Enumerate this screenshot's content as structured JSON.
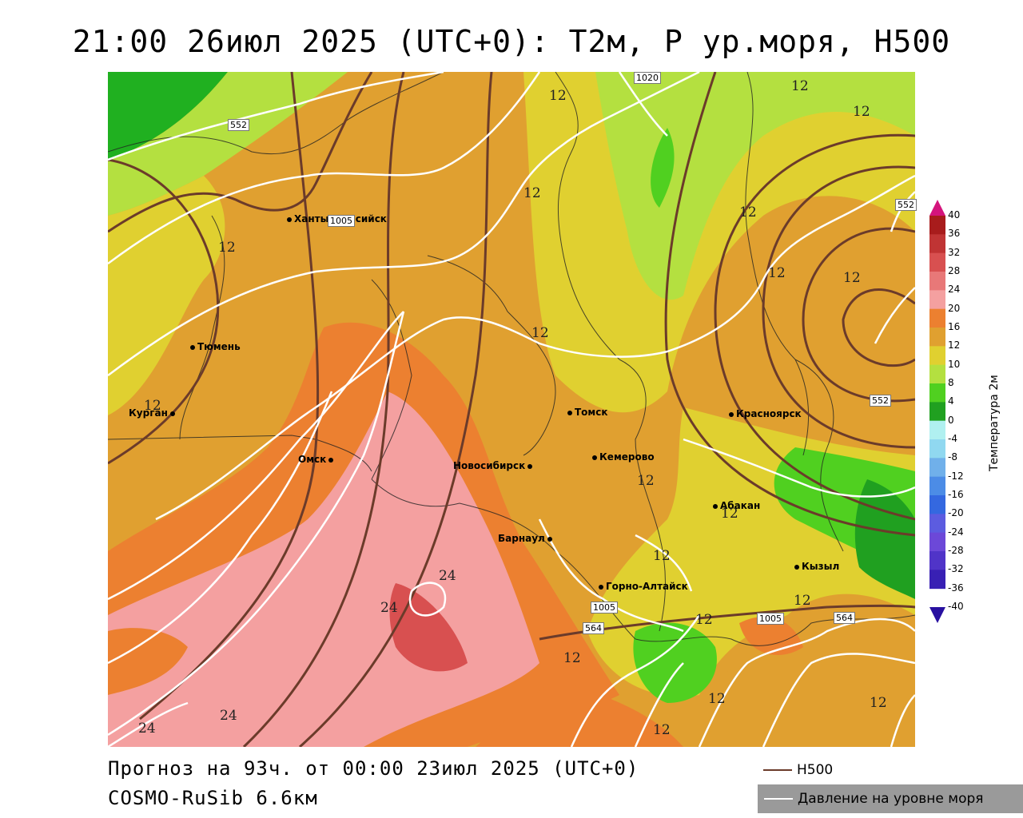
{
  "title": "21:00 26июл 2025 (UTC+0): T2м, P ур.моря, H500",
  "footer": {
    "forecast": "Прогноз на 93ч. от 00:00 23июл 2025 (UTC+0)",
    "model": "COSMO-RuSib 6.6км"
  },
  "legend": {
    "h500": "H500",
    "pressure": "Давление на уровне моря"
  },
  "colorbar": {
    "title": "Температура 2м",
    "ticks": [
      "40",
      "36",
      "32",
      "28",
      "24",
      "20",
      "16",
      "12",
      "10",
      "8",
      "4",
      "0",
      "-4",
      "-8",
      "-12",
      "-16",
      "-20",
      "-24",
      "-28",
      "-32",
      "-36",
      "-40"
    ],
    "colors": [
      "#d4147c",
      "#a81c1c",
      "#c03434",
      "#d85050",
      "#e87878",
      "#f4a0a0",
      "#ec8030",
      "#e0a030",
      "#e0d030",
      "#b4e040",
      "#50d020",
      "#20a020",
      "#b0f0f0",
      "#90d8f0",
      "#70b0ea",
      "#4c8ce6",
      "#3468e0",
      "#5c5ce0",
      "#6c48d8",
      "#5034c8",
      "#3820b4",
      "#2810a0"
    ]
  },
  "cities": [
    {
      "name": "Ханты-Мансийск"
    },
    {
      "name": "Тюмень"
    },
    {
      "name": "Курган"
    },
    {
      "name": "Омск"
    },
    {
      "name": "Новосибирск"
    },
    {
      "name": "Томск"
    },
    {
      "name": "Кемерово"
    },
    {
      "name": "Красноярск"
    },
    {
      "name": "Абакан"
    },
    {
      "name": "Барнаул"
    },
    {
      "name": "Горно-Алтайск"
    },
    {
      "name": "Кызыл"
    }
  ],
  "iso_labels": [
    "12",
    "12",
    "12",
    "12",
    "12",
    "12",
    "12",
    "12",
    "12",
    "12",
    "12",
    "12",
    "12",
    "12",
    "12",
    "12",
    "12",
    "12",
    "24",
    "24",
    "24",
    "24",
    "12"
  ],
  "contour_boxes": [
    "552",
    "552",
    "552",
    "564",
    "564",
    "1020",
    "1005",
    "1005",
    "1005"
  ]
}
